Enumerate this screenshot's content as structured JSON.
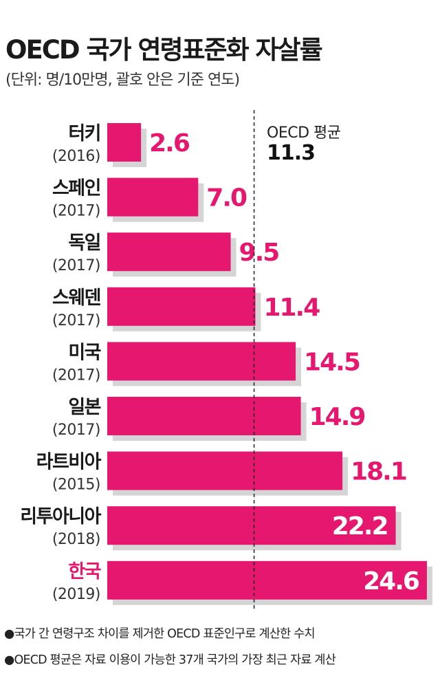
{
  "title": "OECD 국가 연령표준화 자살률",
  "subtitle": "(단위: 명/10만명, 괄호 안은 기준 연도)",
  "average": {
    "label": "OECD 평균",
    "value": 11.3
  },
  "chart_data": {
    "type": "bar",
    "orientation": "horizontal",
    "title": "OECD 국가 연령표준화 자살률",
    "categories": [
      "터키",
      "스페인",
      "독일",
      "스웨덴",
      "미국",
      "일본",
      "라트비아",
      "리투아니아",
      "한국"
    ],
    "years": [
      "(2016)",
      "(2017)",
      "(2017)",
      "(2017)",
      "(2017)",
      "(2017)",
      "(2015)",
      "(2018)",
      "(2019)"
    ],
    "values": [
      2.6,
      7.0,
      9.5,
      11.4,
      14.5,
      14.9,
      18.1,
      22.2,
      24.6
    ],
    "labels": [
      "2.6",
      "7.0",
      "9.5",
      "11.4",
      "14.5",
      "14.9",
      "18.1",
      "22.2",
      "24.6"
    ],
    "reference_line": {
      "name": "OECD 평균",
      "value": 11.3
    },
    "highlight_category": "한국",
    "colors": {
      "bar": "#e6176f",
      "shadow": "#d5d5d5",
      "highlight_text": "#e6176f"
    }
  },
  "notes": [
    "●국가 간 연령구조 차이를 제거한 OECD 표준인구로 계산한 수치",
    "●OECD 평균은 자료 이용이 가능한 37개 국가의 가장 최근 자료 계산"
  ]
}
